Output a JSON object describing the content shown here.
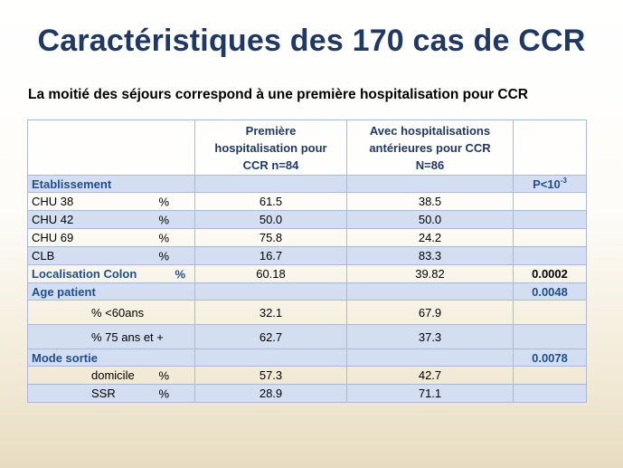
{
  "slide": {
    "title": "Caractéristiques des 170 cas de CCR",
    "subtitle": "La moitié des séjours correspond à une première hospitalisation pour CCR"
  },
  "table": {
    "header": {
      "col1": "",
      "col2_line1": "Première",
      "col2_line2": "hospitalisation pour",
      "col2_line3": "CCR n=84",
      "col3_line1": "Avec hospitalisations",
      "col3_line2": "antérieures pour CCR",
      "col3_line3": "N=86",
      "col4": ""
    },
    "etablissement": {
      "label": "Etablissement",
      "pvalue_base": "P<10",
      "pvalue_exp": "-3"
    },
    "etab_rows": [
      {
        "name": "CHU 38",
        "unit": "%",
        "premiere": "61.5",
        "anterieures": "38.5"
      },
      {
        "name": "CHU 42",
        "unit": "%",
        "premiere": "50.0",
        "anterieures": "50.0"
      },
      {
        "name": "CHU 69",
        "unit": "%",
        "premiere": "75.8",
        "anterieures": "24.2"
      },
      {
        "name": "CLB",
        "unit": "%",
        "premiere": "16.7",
        "anterieures": "83.3"
      }
    ],
    "localisation": {
      "label": "Localisation Colon",
      "unit": "%",
      "premiere": "60.18",
      "anterieures": "39.82",
      "pvalue": "0.0002"
    },
    "age": {
      "label": "Age patient",
      "pvalue": "0.0048",
      "rows": [
        {
          "name": "% <60ans",
          "premiere": "32.1",
          "anterieures": "67.9"
        },
        {
          "name": "% 75 ans et +",
          "premiere": "62.7",
          "anterieures": "37.3"
        }
      ]
    },
    "sortie": {
      "label": "Mode sortie",
      "pvalue": "0.0078",
      "rows": [
        {
          "name": "domicile",
          "unit": "%",
          "premiere": "57.3",
          "anterieures": "42.7"
        },
        {
          "name": "SSR",
          "unit": "%",
          "premiere": "28.9",
          "anterieures": "71.1"
        }
      ]
    }
  }
}
